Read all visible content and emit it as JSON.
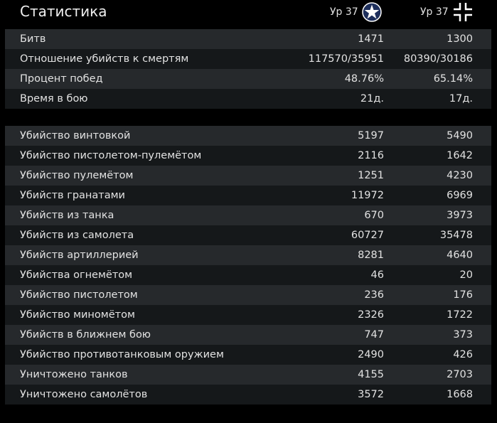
{
  "title": "Статистика",
  "factions": [
    {
      "level_label": "Ур 37",
      "icon": "us-star-roundel-icon"
    },
    {
      "level_label": "Ур 37",
      "icon": "balkenkreuz-icon"
    }
  ],
  "summary_rows": [
    {
      "label": "Битв",
      "v1": "1471",
      "v2": "1300"
    },
    {
      "label": "Отношение убийств к смертям",
      "v1": "117570/35951",
      "v2": "80390/30186"
    },
    {
      "label": "Процент побед",
      "v1": "48.76%",
      "v2": "65.14%"
    },
    {
      "label": "Время в бою",
      "v1": "21д.",
      "v2": "17д."
    }
  ],
  "kill_rows": [
    {
      "label": "Убийство винтовкой",
      "v1": "5197",
      "v2": "5490"
    },
    {
      "label": "Убийство пистолетом-пулемётом",
      "v1": "2116",
      "v2": "1642"
    },
    {
      "label": "Убийство пулемётом",
      "v1": "1251",
      "v2": "4230"
    },
    {
      "label": "Убийств гранатами",
      "v1": "11972",
      "v2": "6969"
    },
    {
      "label": "Убийств из танка",
      "v1": "670",
      "v2": "3973"
    },
    {
      "label": "Убийств из самолета",
      "v1": "60727",
      "v2": "35478"
    },
    {
      "label": "Убийств артиллерией",
      "v1": "8281",
      "v2": "4640"
    },
    {
      "label": "Убийства огнемётом",
      "v1": "46",
      "v2": "20"
    },
    {
      "label": "Убийство пистолетом",
      "v1": "236",
      "v2": "176"
    },
    {
      "label": "Убийство миномётом",
      "v1": "2326",
      "v2": "1722"
    },
    {
      "label": "Убийств в ближнем бою",
      "v1": "747",
      "v2": "373"
    },
    {
      "label": "Убийство противотанковым оружием",
      "v1": "2490",
      "v2": "426"
    },
    {
      "label": "Уничтожено танков",
      "v1": "4155",
      "v2": "2703"
    },
    {
      "label": "Уничтожено самолётов",
      "v1": "3572",
      "v2": "1668"
    }
  ],
  "colors": {
    "background": "#000000",
    "row_light": "#26292c",
    "row_dark": "#15181a",
    "text": "#e2e2e2",
    "roundel_blue": "#1e2f5c"
  }
}
